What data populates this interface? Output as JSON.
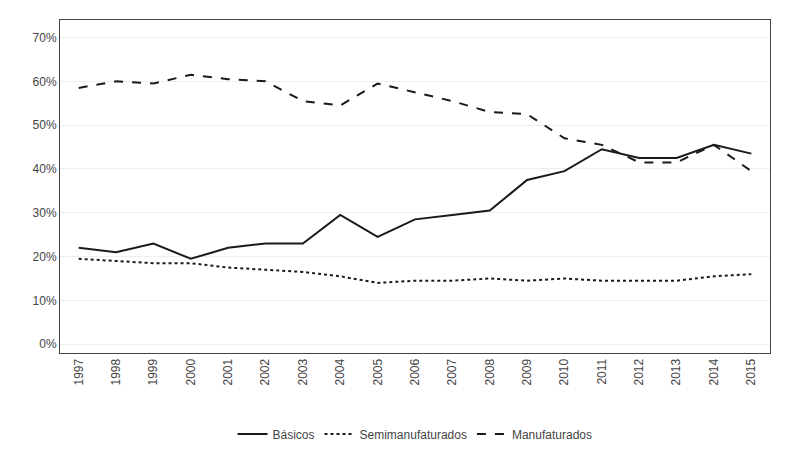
{
  "chart_data": {
    "type": "line",
    "x": [
      1997,
      1998,
      1999,
      2000,
      2001,
      2002,
      2003,
      2004,
      2005,
      2006,
      2007,
      2008,
      2009,
      2010,
      2011,
      2012,
      2013,
      2014,
      2015
    ],
    "series": [
      {
        "name": "Básicos",
        "color": "#1a1a1a",
        "line_style": "solid",
        "values": [
          0.22,
          0.21,
          0.23,
          0.195,
          0.22,
          0.23,
          0.23,
          0.295,
          0.245,
          0.285,
          0.295,
          0.305,
          0.375,
          0.395,
          0.445,
          0.425,
          0.425,
          0.455,
          0.435
        ]
      },
      {
        "name": "Semimanufaturados",
        "color": "#1a1a1a",
        "line_style": "dot",
        "values": [
          0.195,
          0.19,
          0.185,
          0.185,
          0.175,
          0.17,
          0.165,
          0.155,
          0.14,
          0.145,
          0.145,
          0.15,
          0.145,
          0.15,
          0.145,
          0.145,
          0.145,
          0.155,
          0.16
        ]
      },
      {
        "name": "Manufaturados",
        "color": "#1a1a1a",
        "line_style": "dash",
        "values": [
          0.585,
          0.6,
          0.595,
          0.615,
          0.605,
          0.6,
          0.555,
          0.545,
          0.595,
          0.575,
          0.555,
          0.53,
          0.525,
          0.47,
          0.455,
          0.415,
          0.415,
          0.455,
          0.395
        ]
      }
    ],
    "xlim": [
      1996.5,
      2015.5
    ],
    "xticks": [
      1997,
      1998,
      1999,
      2000,
      2001,
      2002,
      2003,
      2004,
      2005,
      2006,
      2007,
      2008,
      2009,
      2010,
      2011,
      2012,
      2013,
      2014,
      2015
    ],
    "ylim": [
      -0.02,
      0.74
    ],
    "yticks": [
      {
        "value": 0.0,
        "label": "0%"
      },
      {
        "value": 0.1,
        "label": "10%"
      },
      {
        "value": 0.2,
        "label": "20%"
      },
      {
        "value": 0.3,
        "label": "30%"
      },
      {
        "value": 0.4,
        "label": "40%"
      },
      {
        "value": 0.5,
        "label": "50%"
      },
      {
        "value": 0.6,
        "label": "60%"
      },
      {
        "value": 0.7,
        "label": "70%"
      }
    ],
    "grid": "y",
    "legend": "bottom"
  }
}
